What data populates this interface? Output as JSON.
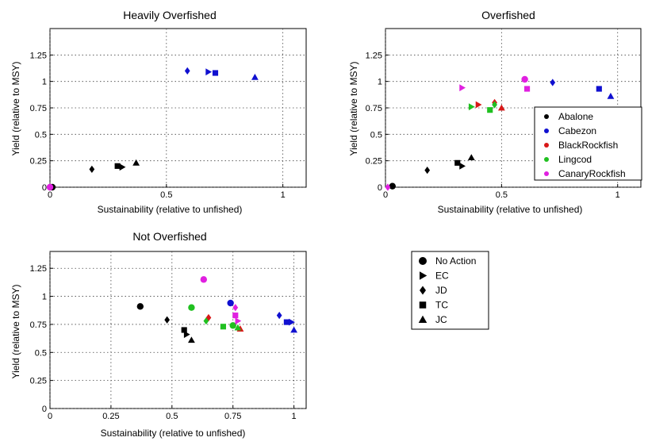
{
  "colors": {
    "Abalone": "#000000",
    "Cabezon": "#1010d0",
    "BlackRockfish": "#d81818",
    "Lingcod": "#20c020",
    "CanaryRockfish": "#e020e0"
  },
  "species_legend": {
    "entries": [
      {
        "key": "Abalone",
        "label": "Abalone"
      },
      {
        "key": "Cabezon",
        "label": "Cabezon"
      },
      {
        "key": "BlackRockfish",
        "label": "BlackRockfish"
      },
      {
        "key": "Lingcod",
        "label": "Lingcod"
      },
      {
        "key": "CanaryRockfish",
        "label": "CanaryRockfish"
      }
    ]
  },
  "marker_legend": {
    "entries": [
      {
        "marker": "circle",
        "label": "No Action"
      },
      {
        "marker": "triangle-right",
        "label": "EC"
      },
      {
        "marker": "diamond",
        "label": "JD"
      },
      {
        "marker": "square",
        "label": "TC"
      },
      {
        "marker": "triangle-up",
        "label": "JC"
      }
    ]
  },
  "chart_data": [
    {
      "type": "scatter",
      "title": "Heavily Overfished",
      "xlabel": "Sustainability (relative to unfished)",
      "ylabel": "Yield (relative to MSY)",
      "xlim": [
        0,
        1.1
      ],
      "ylim": [
        0,
        1.5
      ],
      "xticks": [
        "0",
        "0.5",
        "1"
      ],
      "xtick_values": [
        0,
        0.5,
        1
      ],
      "yticks": [
        "0",
        "0.25",
        "0.5",
        "0.75",
        "1",
        "1.25"
      ],
      "ytick_values": [
        0,
        0.25,
        0.5,
        0.75,
        1,
        1.25
      ],
      "grid": true,
      "points": [
        {
          "s": "Abalone",
          "m": "circle",
          "x": 0.01,
          "y": 0.0
        },
        {
          "s": "Abalone",
          "m": "diamond",
          "x": 0.18,
          "y": 0.17
        },
        {
          "s": "Abalone",
          "m": "square",
          "x": 0.29,
          "y": 0.2
        },
        {
          "s": "Abalone",
          "m": "triangle-right",
          "x": 0.31,
          "y": 0.19
        },
        {
          "s": "Abalone",
          "m": "triangle-up",
          "x": 0.37,
          "y": 0.23
        },
        {
          "s": "Cabezon",
          "m": "diamond",
          "x": 0.59,
          "y": 1.1
        },
        {
          "s": "Cabezon",
          "m": "triangle-right",
          "x": 0.68,
          "y": 1.09
        },
        {
          "s": "Cabezon",
          "m": "square",
          "x": 0.71,
          "y": 1.08
        },
        {
          "s": "Cabezon",
          "m": "triangle-up",
          "x": 0.88,
          "y": 1.04
        },
        {
          "s": "CanaryRockfish",
          "m": "circle",
          "x": 0.0,
          "y": 0.0
        },
        {
          "s": "CanaryRockfish",
          "m": "diamond",
          "x": 0.0,
          "y": 0.0
        }
      ]
    },
    {
      "type": "scatter",
      "title": "Overfished",
      "xlabel": "Sustainability (relative to unfished)",
      "ylabel": "Yield (relative to MSY)",
      "xlim": [
        0,
        1.1
      ],
      "ylim": [
        0,
        1.5
      ],
      "xticks": [
        "0",
        "0.5",
        "1"
      ],
      "xtick_values": [
        0,
        0.5,
        1
      ],
      "yticks": [
        "0",
        "0.25",
        "0.5",
        "0.75",
        "1",
        "1.25"
      ],
      "ytick_values": [
        0,
        0.25,
        0.5,
        0.75,
        1,
        1.25
      ],
      "grid": true,
      "legend": "right",
      "points": [
        {
          "s": "Abalone",
          "m": "circle",
          "x": 0.03,
          "y": 0.01
        },
        {
          "s": "Abalone",
          "m": "diamond",
          "x": 0.18,
          "y": 0.16
        },
        {
          "s": "Abalone",
          "m": "square",
          "x": 0.31,
          "y": 0.23
        },
        {
          "s": "Abalone",
          "m": "triangle-right",
          "x": 0.33,
          "y": 0.2
        },
        {
          "s": "Abalone",
          "m": "triangle-up",
          "x": 0.37,
          "y": 0.28
        },
        {
          "s": "Cabezon",
          "m": "diamond",
          "x": 0.72,
          "y": 0.99
        },
        {
          "s": "Cabezon",
          "m": "square",
          "x": 0.92,
          "y": 0.93
        },
        {
          "s": "Cabezon",
          "m": "triangle-up",
          "x": 0.97,
          "y": 0.86
        },
        {
          "s": "BlackRockfish",
          "m": "triangle-right",
          "x": 0.4,
          "y": 0.78
        },
        {
          "s": "BlackRockfish",
          "m": "diamond",
          "x": 0.47,
          "y": 0.8
        },
        {
          "s": "BlackRockfish",
          "m": "triangle-up",
          "x": 0.5,
          "y": 0.75
        },
        {
          "s": "Lingcod",
          "m": "triangle-right",
          "x": 0.37,
          "y": 0.76
        },
        {
          "s": "Lingcod",
          "m": "square",
          "x": 0.45,
          "y": 0.73
        },
        {
          "s": "Lingcod",
          "m": "diamond",
          "x": 0.47,
          "y": 0.78
        },
        {
          "s": "CanaryRockfish",
          "m": "triangle-right",
          "x": 0.33,
          "y": 0.94
        },
        {
          "s": "CanaryRockfish",
          "m": "circle",
          "x": 0.6,
          "y": 1.02
        },
        {
          "s": "CanaryRockfish",
          "m": "square",
          "x": 0.61,
          "y": 0.93
        },
        {
          "s": "CanaryRockfish",
          "m": "diamond",
          "x": 0.01,
          "y": 0.0
        }
      ]
    },
    {
      "type": "scatter",
      "title": "Not Overfished",
      "xlabel": "Sustainability (relative to unfished)",
      "ylabel": "Yield (relative to MSY)",
      "xlim": [
        0,
        1.05
      ],
      "ylim": [
        0,
        1.4
      ],
      "xticks": [
        "0",
        "0.25",
        "0.5",
        "0.75",
        "1"
      ],
      "xtick_values": [
        0,
        0.25,
        0.5,
        0.75,
        1
      ],
      "yticks": [
        "0",
        "0.25",
        "0.5",
        "0.75",
        "1",
        "1.25"
      ],
      "ytick_values": [
        0,
        0.25,
        0.5,
        0.75,
        1,
        1.25
      ],
      "grid": true,
      "points": [
        {
          "s": "Abalone",
          "m": "circle",
          "x": 0.37,
          "y": 0.91
        },
        {
          "s": "Abalone",
          "m": "diamond",
          "x": 0.48,
          "y": 0.79
        },
        {
          "s": "Abalone",
          "m": "square",
          "x": 0.55,
          "y": 0.7
        },
        {
          "s": "Abalone",
          "m": "triangle-right",
          "x": 0.56,
          "y": 0.66
        },
        {
          "s": "Abalone",
          "m": "triangle-up",
          "x": 0.58,
          "y": 0.61
        },
        {
          "s": "Cabezon",
          "m": "circle",
          "x": 0.74,
          "y": 0.94
        },
        {
          "s": "Cabezon",
          "m": "diamond",
          "x": 0.94,
          "y": 0.83
        },
        {
          "s": "Cabezon",
          "m": "square",
          "x": 0.97,
          "y": 0.77
        },
        {
          "s": "Cabezon",
          "m": "triangle-right",
          "x": 0.99,
          "y": 0.77
        },
        {
          "s": "Cabezon",
          "m": "triangle-up",
          "x": 1.0,
          "y": 0.7
        },
        {
          "s": "BlackRockfish",
          "m": "diamond",
          "x": 0.65,
          "y": 0.81
        },
        {
          "s": "BlackRockfish",
          "m": "triangle-up",
          "x": 0.78,
          "y": 0.71
        },
        {
          "s": "Lingcod",
          "m": "circle",
          "x": 0.58,
          "y": 0.9
        },
        {
          "s": "Lingcod",
          "m": "diamond",
          "x": 0.64,
          "y": 0.78
        },
        {
          "s": "Lingcod",
          "m": "square",
          "x": 0.71,
          "y": 0.73
        },
        {
          "s": "Lingcod",
          "m": "circle",
          "x": 0.75,
          "y": 0.74
        },
        {
          "s": "Lingcod",
          "m": "triangle-up",
          "x": 0.77,
          "y": 0.72
        },
        {
          "s": "CanaryRockfish",
          "m": "circle",
          "x": 0.63,
          "y": 1.15
        },
        {
          "s": "CanaryRockfish",
          "m": "diamond",
          "x": 0.76,
          "y": 0.9
        },
        {
          "s": "CanaryRockfish",
          "m": "square",
          "x": 0.76,
          "y": 0.83
        },
        {
          "s": "CanaryRockfish",
          "m": "triangle-right",
          "x": 0.77,
          "y": 0.78
        }
      ]
    }
  ]
}
